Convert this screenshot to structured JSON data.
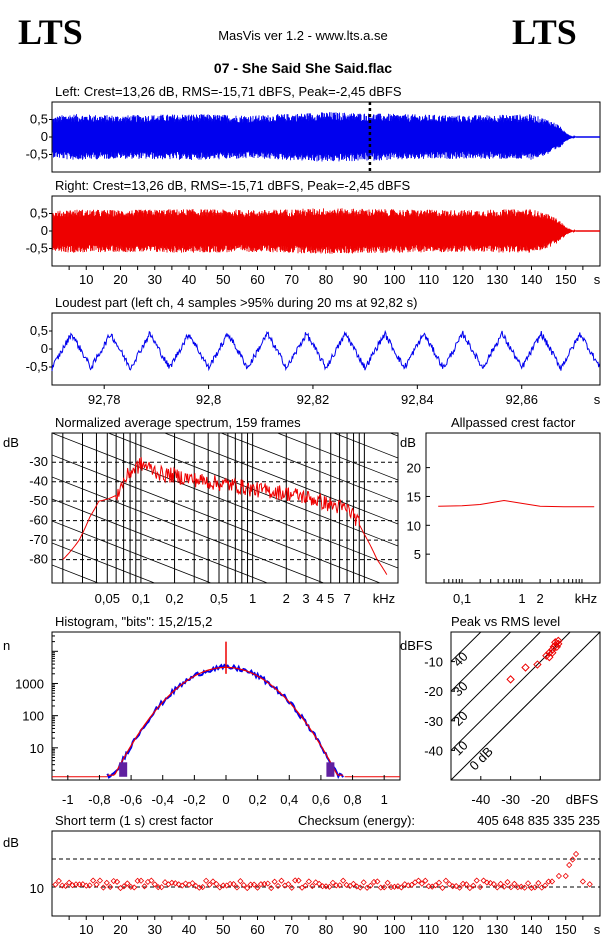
{
  "header": {
    "logo_left": "LTS",
    "logo_right": "LTS",
    "app": "MasVis ver 1.2 - www.lts.a.se",
    "track": "07 - She Said She Said.flac"
  },
  "colors": {
    "left": "#0000ee",
    "right": "#ee0000",
    "spectrum": "#ee0000",
    "grid": "#000000"
  },
  "chart_data": [
    {
      "id": "left",
      "type": "area",
      "title": "Left: Crest=13,26 dB, RMS=-15,71 dBFS, Peak=-2,45 dBFS",
      "yticks": [
        "0,5",
        "0",
        "-0,5"
      ],
      "ylim": [
        -1,
        1
      ],
      "xlim": [
        0,
        160
      ],
      "duration_s": 153,
      "envelope": [
        [
          0,
          0.58
        ],
        [
          5,
          0.66
        ],
        [
          20,
          0.62
        ],
        [
          40,
          0.66
        ],
        [
          60,
          0.62
        ],
        [
          80,
          0.72
        ],
        [
          100,
          0.66
        ],
        [
          120,
          0.62
        ],
        [
          140,
          0.65
        ],
        [
          145,
          0.5
        ],
        [
          148,
          0.35
        ],
        [
          150,
          0.12
        ],
        [
          152,
          0.02
        ],
        [
          153,
          0
        ]
      ],
      "marker_s": 92.82
    },
    {
      "id": "right",
      "type": "area",
      "title": "Right: Crest=13,26 dB, RMS=-15,71 dBFS, Peak=-2,45 dBFS",
      "yticks": [
        "0,5",
        "0",
        "-0,5"
      ],
      "ylim": [
        -1,
        1
      ],
      "xlim": [
        0,
        160
      ],
      "xticks": [
        "10",
        "20",
        "30",
        "40",
        "50",
        "60",
        "70",
        "80",
        "90",
        "100",
        "110",
        "120",
        "130",
        "140",
        "150",
        "s"
      ],
      "envelope": [
        [
          0,
          0.55
        ],
        [
          5,
          0.62
        ],
        [
          20,
          0.6
        ],
        [
          40,
          0.63
        ],
        [
          60,
          0.6
        ],
        [
          80,
          0.66
        ],
        [
          100,
          0.62
        ],
        [
          120,
          0.6
        ],
        [
          140,
          0.63
        ],
        [
          145,
          0.48
        ],
        [
          148,
          0.32
        ],
        [
          150,
          0.12
        ],
        [
          152,
          0.02
        ],
        [
          153,
          0
        ]
      ]
    },
    {
      "id": "loudest",
      "type": "line",
      "title": "Loudest part (left  ch, 4 samples >95% during 20 ms at 92,82 s)",
      "yticks": [
        "0,5",
        "0",
        "-0,5"
      ],
      "xticks": [
        "92,78",
        "92,8",
        "92,82",
        "92,84",
        "92,86",
        "s"
      ],
      "xlim": [
        92.77,
        92.875
      ],
      "ylim": [
        -1,
        1
      ],
      "period_s": 0.0075,
      "amplitude": 0.5
    },
    {
      "id": "spectrum",
      "type": "line",
      "title": "Normalized average spectrum, 159 frames",
      "ylabel": "dB",
      "yticks": [
        "-30",
        "-40",
        "-50",
        "-60",
        "-70",
        "-80"
      ],
      "ylim": [
        -92,
        -15
      ],
      "xlabel": "kHz",
      "xticks": [
        "0,05",
        "0,1",
        "0,2",
        "0,5",
        "1",
        "2",
        "3",
        "4",
        "5",
        "7"
      ],
      "points": [
        [
          0.02,
          -80
        ],
        [
          0.028,
          -70
        ],
        [
          0.035,
          -58
        ],
        [
          0.042,
          -50
        ],
        [
          0.05,
          -49
        ],
        [
          0.06,
          -47
        ],
        [
          0.07,
          -40
        ],
        [
          0.08,
          -35
        ],
        [
          0.1,
          -31
        ],
        [
          0.12,
          -33
        ],
        [
          0.15,
          -36
        ],
        [
          0.2,
          -37
        ],
        [
          0.3,
          -39
        ],
        [
          0.5,
          -41
        ],
        [
          0.7,
          -42
        ],
        [
          1,
          -44
        ],
        [
          1.5,
          -45
        ],
        [
          2,
          -46
        ],
        [
          3,
          -48
        ],
        [
          4,
          -50
        ],
        [
          5,
          -52
        ],
        [
          6,
          -53
        ],
        [
          7,
          -54
        ],
        [
          8,
          -57
        ],
        [
          10,
          -67
        ],
        [
          13,
          -80
        ],
        [
          16,
          -88
        ]
      ]
    },
    {
      "id": "allpass",
      "type": "line",
      "title": "Allpassed crest factor",
      "ylabel": "dB",
      "yticks": [
        "20",
        "15",
        "10",
        "5"
      ],
      "ylim": [
        0,
        26
      ],
      "xlabel": "kHz",
      "xticks": [
        "0,1",
        "1",
        "2"
      ],
      "points": [
        [
          0.04,
          13.3
        ],
        [
          0.1,
          13.4
        ],
        [
          0.2,
          13.6
        ],
        [
          0.5,
          14.3
        ],
        [
          1,
          13.8
        ],
        [
          2,
          13.3
        ],
        [
          5,
          13.2
        ],
        [
          16,
          13.2
        ]
      ]
    },
    {
      "id": "histogram",
      "type": "line",
      "title": "Histogram, \"bits\": 15,2/15,2",
      "ylabel": "n",
      "yticks": [
        "1000",
        "100",
        "10"
      ],
      "xticks": [
        "-1",
        "-0,8",
        "-0,6",
        "-0,4",
        "-0,2",
        "0",
        "0,2",
        "0,4",
        "0,6",
        "0,8",
        "1"
      ],
      "xlim": [
        -1.1,
        1.1
      ],
      "peak_count_log10": 3.5,
      "spike_log10": 4.3
    },
    {
      "id": "peakrms",
      "type": "scatter",
      "title": "Peak vs RMS level",
      "ylabel": "dBFS",
      "xlabel": "dBFS",
      "yticks": [
        "-10",
        "-20",
        "-30",
        "-40"
      ],
      "xticks": [
        "-40",
        "-30",
        "-20"
      ],
      "lim": [
        -50,
        0
      ],
      "diagonals": [
        "40",
        "30",
        "20",
        "10",
        "0 dB"
      ],
      "points": [
        [
          -30,
          -16
        ],
        [
          -25,
          -12
        ],
        [
          -21,
          -11
        ],
        [
          -18,
          -8
        ],
        [
          -17,
          -7
        ],
        [
          -16,
          -6
        ],
        [
          -15.5,
          -5
        ],
        [
          -15,
          -4.5
        ],
        [
          -14.5,
          -5
        ],
        [
          -14,
          -4
        ],
        [
          -15,
          -3.5
        ],
        [
          -16,
          -7
        ],
        [
          -17,
          -8.5
        ],
        [
          -14,
          -3
        ]
      ]
    },
    {
      "id": "crest",
      "type": "scatter",
      "title": "Short term (1 s) crest factor",
      "checksum_label": "Checksum (energy):",
      "checksum_value": "405 648 835 335 235",
      "ylabel": "dB",
      "yticks": [
        "10"
      ],
      "xticks": [
        "10",
        "20",
        "30",
        "40",
        "50",
        "60",
        "70",
        "80",
        "90",
        "100",
        "110",
        "120",
        "130",
        "140",
        "150",
        "s"
      ],
      "xlim": [
        0,
        160
      ],
      "baseline_db": 10.5,
      "tail": [
        [
          146,
          11
        ],
        [
          148,
          12
        ],
        [
          150,
          12
        ],
        [
          151,
          14
        ],
        [
          152,
          15
        ],
        [
          153,
          16
        ],
        [
          155,
          11
        ],
        [
          157,
          10.5
        ]
      ]
    }
  ]
}
